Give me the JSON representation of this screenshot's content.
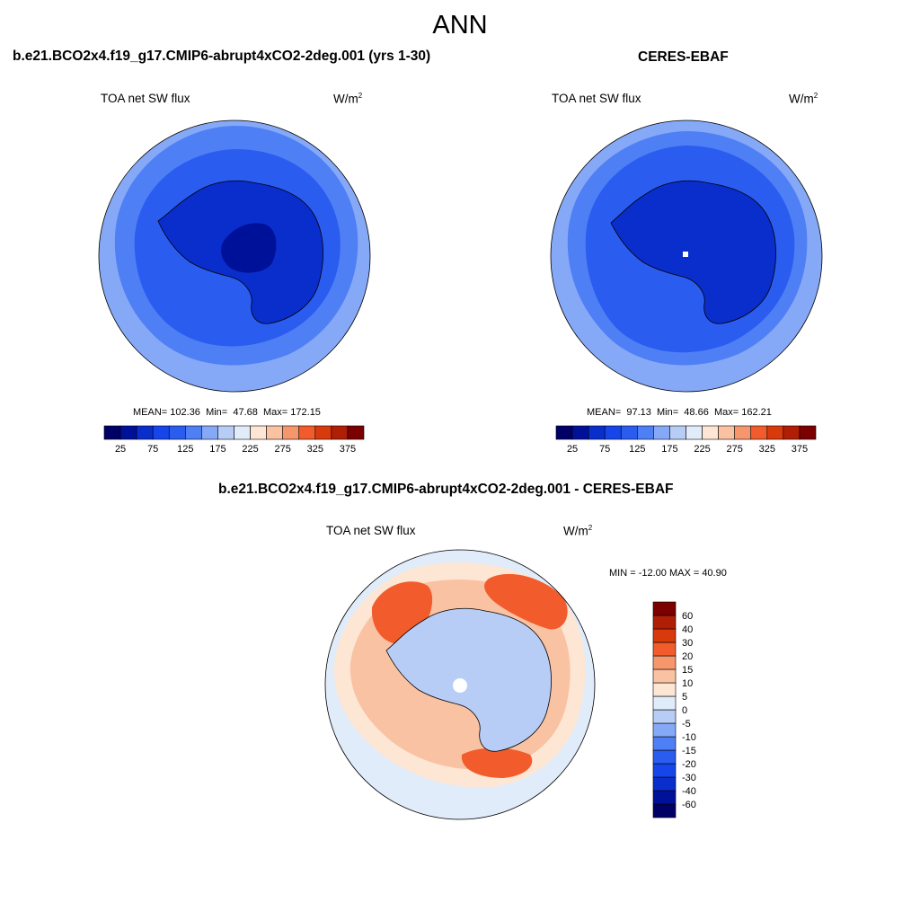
{
  "season": "ANN",
  "panels": {
    "model": {
      "title": "b.e21.BCO2x4.f19_g17.CMIP6-abrupt4xCO2-2deg.001 (yrs 1-30)",
      "variable": "TOA net SW flux",
      "units_base": "W/m",
      "units_exp": "2",
      "stats": {
        "mean_label": "MEAN=",
        "mean": "102.36",
        "min_label": "Min=",
        "min": "47.68",
        "max_label": "Max=",
        "max": "172.15"
      }
    },
    "obs": {
      "title": "CERES-EBAF",
      "variable": "TOA net SW flux",
      "units_base": "W/m",
      "units_exp": "2",
      "stats": {
        "mean_label": "MEAN=",
        "mean": "97.13",
        "min_label": "Min=",
        "min": "48.66",
        "max_label": "Max=",
        "max": "162.21"
      }
    },
    "diff": {
      "title": "b.e21.BCO2x4.f19_g17.CMIP6-abrupt4xCO2-2deg.001 - CERES-EBAF",
      "variable": "TOA net SW flux",
      "units_base": "W/m",
      "units_exp": "2",
      "minmax_text": "MIN = -12.00 MAX =  40.90"
    }
  },
  "chart_data": [
    {
      "type": "heatmap",
      "projection": "south-polar-stereographic",
      "title": "b.e21.BCO2x4.f19_g17.CMIP6-abrupt4xCO2-2deg.001 (yrs 1-30)",
      "variable": "TOA net SW flux",
      "units": "W/m2",
      "mean": 102.36,
      "min": 47.68,
      "max": 172.15,
      "colorbar_orientation": "horizontal",
      "colorbar_levels": [
        25,
        50,
        75,
        100,
        125,
        150,
        175,
        200,
        225,
        250,
        275,
        300,
        325,
        350,
        375
      ],
      "colorbar_tick_labels": [
        "25",
        "75",
        "125",
        "175",
        "225",
        "275",
        "325",
        "375"
      ],
      "regions": [
        {
          "zone": "ocean-outer",
          "value_range": [
            125,
            150
          ]
        },
        {
          "zone": "ocean-mid",
          "value_range": [
            100,
            125
          ]
        },
        {
          "zone": "ocean-inner",
          "value_range": [
            75,
            100
          ]
        },
        {
          "zone": "antarctica",
          "value_range": [
            50,
            75
          ]
        },
        {
          "zone": "east-antarctic-plateau",
          "value_range": [
            25,
            50
          ]
        }
      ]
    },
    {
      "type": "heatmap",
      "projection": "south-polar-stereographic",
      "title": "CERES-EBAF",
      "variable": "TOA net SW flux",
      "units": "W/m2",
      "mean": 97.13,
      "min": 48.66,
      "max": 162.21,
      "colorbar_orientation": "horizontal",
      "colorbar_levels": [
        25,
        50,
        75,
        100,
        125,
        150,
        175,
        200,
        225,
        250,
        275,
        300,
        325,
        350,
        375
      ],
      "colorbar_tick_labels": [
        "25",
        "75",
        "125",
        "175",
        "225",
        "275",
        "325",
        "375"
      ],
      "regions": [
        {
          "zone": "ocean-outer",
          "value_range": [
            125,
            150
          ]
        },
        {
          "zone": "ocean-mid",
          "value_range": [
            100,
            125
          ]
        },
        {
          "zone": "ocean-inner",
          "value_range": [
            75,
            100
          ]
        },
        {
          "zone": "antarctica",
          "value_range": [
            50,
            75
          ]
        }
      ]
    },
    {
      "type": "heatmap",
      "projection": "south-polar-stereographic",
      "title": "b.e21.BCO2x4.f19_g17.CMIP6-abrupt4xCO2-2deg.001 - CERES-EBAF",
      "variable": "TOA net SW flux",
      "units": "W/m2",
      "min": -12.0,
      "max": 40.9,
      "colorbar_orientation": "vertical",
      "colorbar_levels": [
        -60,
        -40,
        -30,
        -20,
        -15,
        -10,
        -5,
        0,
        5,
        10,
        15,
        20,
        30,
        40,
        60
      ],
      "colorbar_tick_labels": [
        "60",
        "40",
        "30",
        "20",
        "15",
        "10",
        "5",
        "0",
        "-5",
        "-10",
        "-15",
        "-20",
        "-30",
        "-40",
        "-60"
      ],
      "regions": [
        {
          "zone": "outer-ocean",
          "value_range": [
            -5,
            0
          ]
        },
        {
          "zone": "mid-latitude-band",
          "value_range": [
            5,
            15
          ]
        },
        {
          "zone": "weddell-sea",
          "value_range": [
            20,
            40
          ]
        },
        {
          "zone": "ross-sea",
          "value_range": [
            20,
            40
          ]
        },
        {
          "zone": "bellingshausen-sea",
          "value_range": [
            20,
            40
          ]
        },
        {
          "zone": "antarctica",
          "value_range": [
            -10,
            0
          ]
        }
      ]
    }
  ],
  "colors": {
    "abs": [
      "#000066",
      "#001199",
      "#0a2ecc",
      "#1646eb",
      "#2a5cf0",
      "#4f7ff5",
      "#86a9f7",
      "#b8cdf6",
      "#e1ecfa",
      "#fde6d4",
      "#f9c2a3",
      "#f6966c",
      "#f25c2c",
      "#d93a0c",
      "#b01e05",
      "#7b0000"
    ],
    "diff": [
      "#000066",
      "#001199",
      "#0a2ecc",
      "#1646eb",
      "#2a5cf0",
      "#4f7ff5",
      "#86a9f7",
      "#b8cdf6",
      "#e1ecfa",
      "#fde6d4",
      "#f9c2a3",
      "#f6966c",
      "#f25c2c",
      "#d93a0c",
      "#b01e05",
      "#7b0000"
    ]
  }
}
